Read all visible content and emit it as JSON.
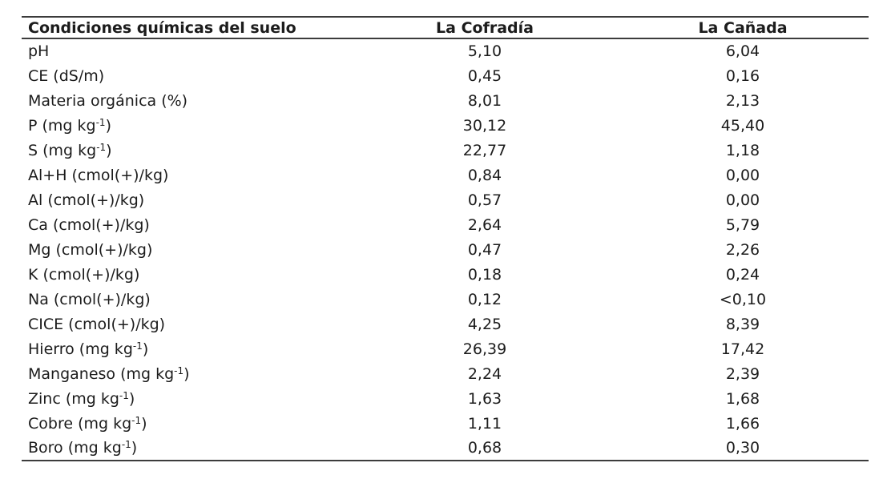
{
  "page": {
    "background": "#ffffff",
    "text_color": "#1c1c1c",
    "rule_color": "#3c3c3c"
  },
  "table": {
    "columns": [
      {
        "label": "Condiciones químicas del suelo"
      },
      {
        "label": "La Cofradía"
      },
      {
        "label": "La Cañada"
      }
    ],
    "rows": [
      {
        "param_pre": "pH",
        "param_sup": "",
        "param_post": "",
        "cofradia": "5,10",
        "canada": "6,04"
      },
      {
        "param_pre": "CE (dS/m)",
        "param_sup": "",
        "param_post": "",
        "cofradia": "0,45",
        "canada": "0,16"
      },
      {
        "param_pre": "Materia orgánica (%)",
        "param_sup": "",
        "param_post": "",
        "cofradia": "8,01",
        "canada": "2,13"
      },
      {
        "param_pre": "P (mg kg",
        "param_sup": "-1",
        "param_post": ")",
        "cofradia": "30,12",
        "canada": "45,40"
      },
      {
        "param_pre": "S (mg kg",
        "param_sup": "-1",
        "param_post": ")",
        "cofradia": "22,77",
        "canada": "1,18"
      },
      {
        "param_pre": "Al+H (cmol(+)/kg)",
        "param_sup": "",
        "param_post": "",
        "cofradia": "0,84",
        "canada": "0,00"
      },
      {
        "param_pre": "Al (cmol(+)/kg)",
        "param_sup": "",
        "param_post": "",
        "cofradia": "0,57",
        "canada": "0,00"
      },
      {
        "param_pre": "Ca (cmol(+)/kg)",
        "param_sup": "",
        "param_post": "",
        "cofradia": "2,64",
        "canada": "5,79"
      },
      {
        "param_pre": "Mg (cmol(+)/kg)",
        "param_sup": "",
        "param_post": "",
        "cofradia": "0,47",
        "canada": "2,26"
      },
      {
        "param_pre": "K (cmol(+)/kg)",
        "param_sup": "",
        "param_post": "",
        "cofradia": "0,18",
        "canada": "0,24"
      },
      {
        "param_pre": "Na (cmol(+)/kg)",
        "param_sup": "",
        "param_post": "",
        "cofradia": "0,12",
        "canada": "<0,10"
      },
      {
        "param_pre": "CICE (cmol(+)/kg)",
        "param_sup": "",
        "param_post": "",
        "cofradia": "4,25",
        "canada": "8,39"
      },
      {
        "param_pre": "Hierro (mg kg",
        "param_sup": "-1",
        "param_post": ")",
        "cofradia": "26,39",
        "canada": "17,42"
      },
      {
        "param_pre": "Manganeso (mg kg",
        "param_sup": "-1",
        "param_post": ")",
        "cofradia": "2,24",
        "canada": "2,39"
      },
      {
        "param_pre": "Zinc (mg kg",
        "param_sup": "-1",
        "param_post": ")",
        "cofradia": "1,63",
        "canada": "1,68"
      },
      {
        "param_pre": "Cobre (mg kg",
        "param_sup": "-1",
        "param_post": ")",
        "cofradia": "1,11",
        "canada": "1,66"
      },
      {
        "param_pre": "Boro (mg kg",
        "param_sup": "-1",
        "param_post": ")",
        "cofradia": "0,68",
        "canada": "0,30"
      }
    ]
  }
}
